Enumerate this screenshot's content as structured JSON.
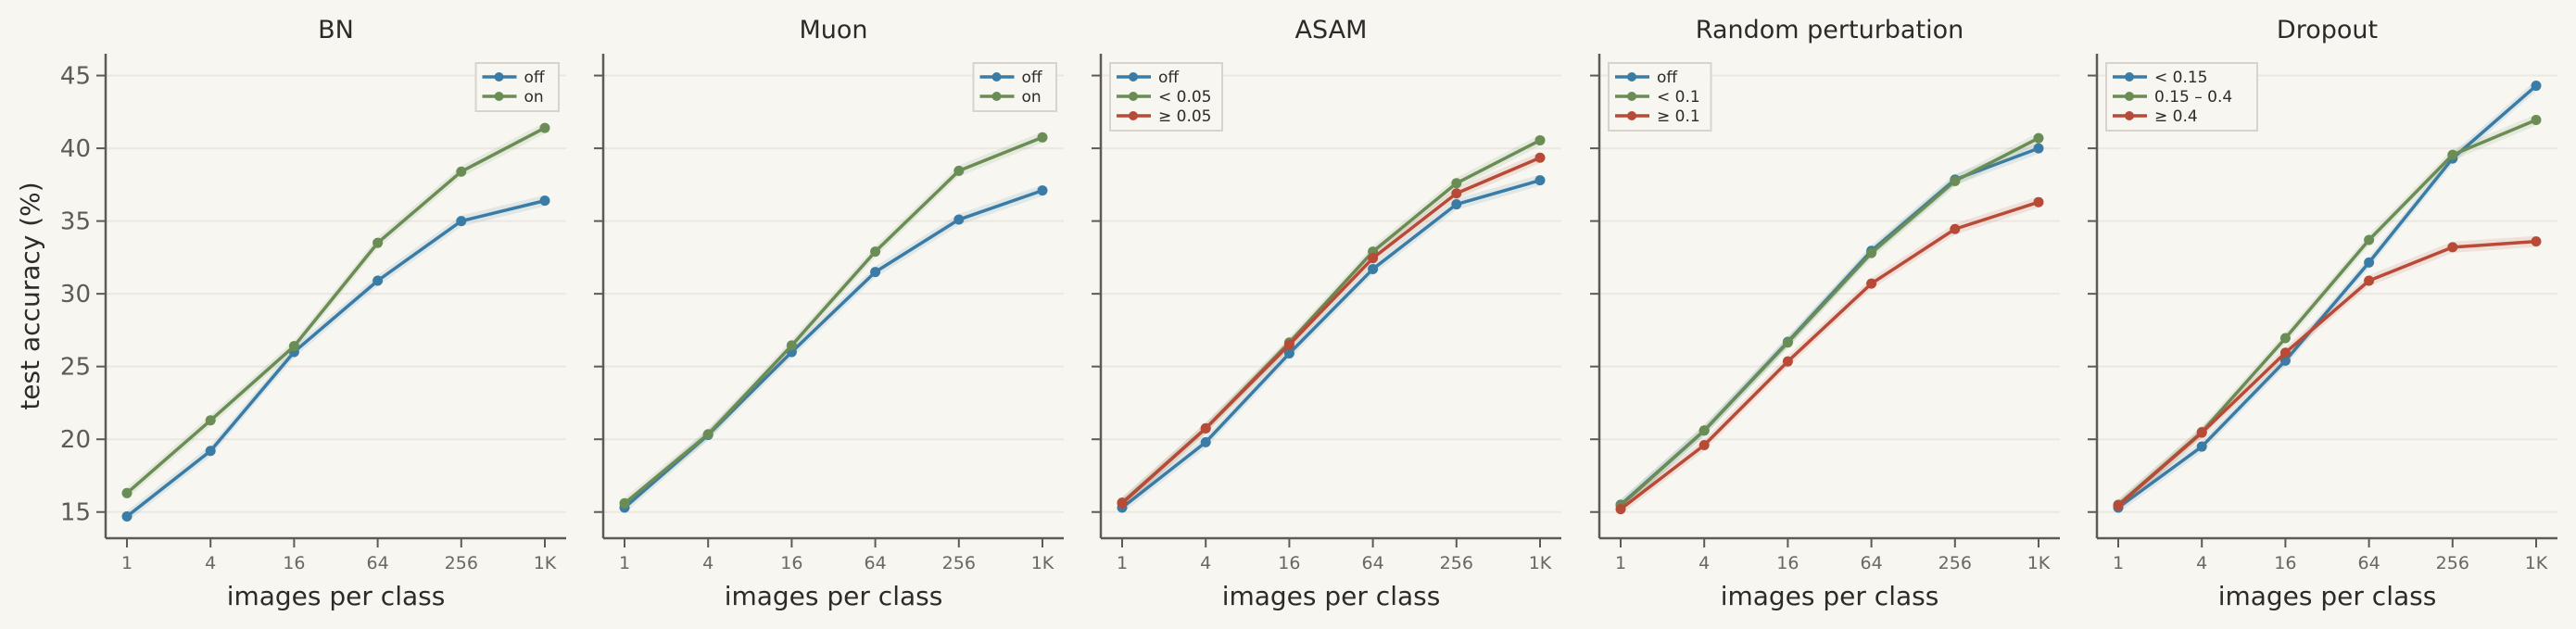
{
  "chart_data": [
    {
      "type": "line",
      "title": "BN",
      "xlabel": "images per class",
      "ylabel": "test accuracy (%)",
      "x": [
        1,
        4,
        16,
        64,
        256,
        1024
      ],
      "x_tick_labels": [
        "1",
        "4",
        "16",
        "64",
        "256",
        "1K"
      ],
      "x_scale": "log2",
      "y_ticks": [
        15,
        20,
        25,
        30,
        35,
        40,
        45
      ],
      "ylim": [
        13.2,
        46.5
      ],
      "grid": "horizontal",
      "legend": "top-right",
      "series": [
        {
          "name": "off",
          "color": "#3a7ca5",
          "values": [
            14.7,
            19.2,
            26.0,
            30.9,
            35.0,
            36.4
          ]
        },
        {
          "name": "on",
          "color": "#6a8c55",
          "values": [
            16.3,
            21.3,
            26.4,
            33.5,
            38.4,
            41.4
          ]
        }
      ]
    },
    {
      "type": "line",
      "title": "Muon",
      "xlabel": "images per class",
      "x": [
        1,
        4,
        16,
        64,
        256,
        1024
      ],
      "x_tick_labels": [
        "1",
        "4",
        "16",
        "64",
        "256",
        "1K"
      ],
      "x_scale": "log2",
      "y_ticks": [
        15,
        20,
        25,
        30,
        35,
        40,
        45
      ],
      "ylim": [
        13.2,
        46.5
      ],
      "grid": "horizontal",
      "legend": "top-right",
      "series": [
        {
          "name": "off",
          "color": "#3a7ca5",
          "values": [
            15.3,
            20.3,
            26.0,
            31.5,
            35.1,
            37.1
          ]
        },
        {
          "name": "on",
          "color": "#6a8c55",
          "values": [
            15.6,
            20.35,
            26.45,
            32.9,
            38.45,
            40.75
          ]
        }
      ]
    },
    {
      "type": "line",
      "title": "ASAM",
      "xlabel": "images per class",
      "x": [
        1,
        4,
        16,
        64,
        256,
        1024
      ],
      "x_tick_labels": [
        "1",
        "4",
        "16",
        "64",
        "256",
        "1K"
      ],
      "x_scale": "log2",
      "y_ticks": [
        15,
        20,
        25,
        30,
        35,
        40,
        45
      ],
      "ylim": [
        13.2,
        46.5
      ],
      "grid": "horizontal",
      "legend": "top-left",
      "series": [
        {
          "name": "off",
          "color": "#3a7ca5",
          "values": [
            15.3,
            19.8,
            25.9,
            31.7,
            36.15,
            37.8
          ]
        },
        {
          "name": "< 0.05",
          "color": "#6a8c55",
          "values": [
            15.65,
            20.75,
            26.65,
            32.9,
            37.6,
            40.55
          ]
        },
        {
          "name": "≥ 0.05",
          "color": "#b84a38",
          "values": [
            15.6,
            20.75,
            26.5,
            32.45,
            36.9,
            39.35
          ]
        }
      ]
    },
    {
      "type": "line",
      "title": "Random perturbation",
      "xlabel": "images per class",
      "x": [
        1,
        4,
        16,
        64,
        256,
        1024
      ],
      "x_tick_labels": [
        "1",
        "4",
        "16",
        "64",
        "256",
        "1K"
      ],
      "x_scale": "log2",
      "y_ticks": [
        15,
        20,
        25,
        30,
        35,
        40,
        45
      ],
      "ylim": [
        13.2,
        46.5
      ],
      "grid": "horizontal",
      "legend": "top-left",
      "series": [
        {
          "name": "off",
          "color": "#3a7ca5",
          "values": [
            15.5,
            20.6,
            26.7,
            32.95,
            37.85,
            40.0
          ]
        },
        {
          "name": "< 0.1",
          "color": "#6a8c55",
          "values": [
            15.45,
            20.6,
            26.65,
            32.8,
            37.75,
            40.7
          ]
        },
        {
          "name": "≥ 0.1",
          "color": "#b84a38",
          "values": [
            15.2,
            19.6,
            25.35,
            30.7,
            34.45,
            36.3
          ]
        }
      ]
    },
    {
      "type": "line",
      "title": "Dropout",
      "xlabel": "images per class",
      "x": [
        1,
        4,
        16,
        64,
        256,
        1024
      ],
      "x_tick_labels": [
        "1",
        "4",
        "16",
        "64",
        "256",
        "1K"
      ],
      "x_scale": "log2",
      "y_ticks": [
        15,
        20,
        25,
        30,
        35,
        40,
        45
      ],
      "ylim": [
        13.2,
        46.5
      ],
      "grid": "horizontal",
      "legend": "top-left",
      "series": [
        {
          "name": "< 0.15",
          "color": "#3a7ca5",
          "values": [
            15.3,
            19.5,
            25.4,
            32.15,
            39.3,
            44.3
          ]
        },
        {
          "name": "0.15 – 0.4",
          "color": "#6a8c55",
          "values": [
            15.5,
            20.5,
            26.95,
            33.7,
            39.55,
            41.95
          ]
        },
        {
          "name": "≥ 0.4",
          "color": "#b84a38",
          "values": [
            15.45,
            20.45,
            25.95,
            30.9,
            33.2,
            33.6
          ]
        }
      ]
    }
  ]
}
